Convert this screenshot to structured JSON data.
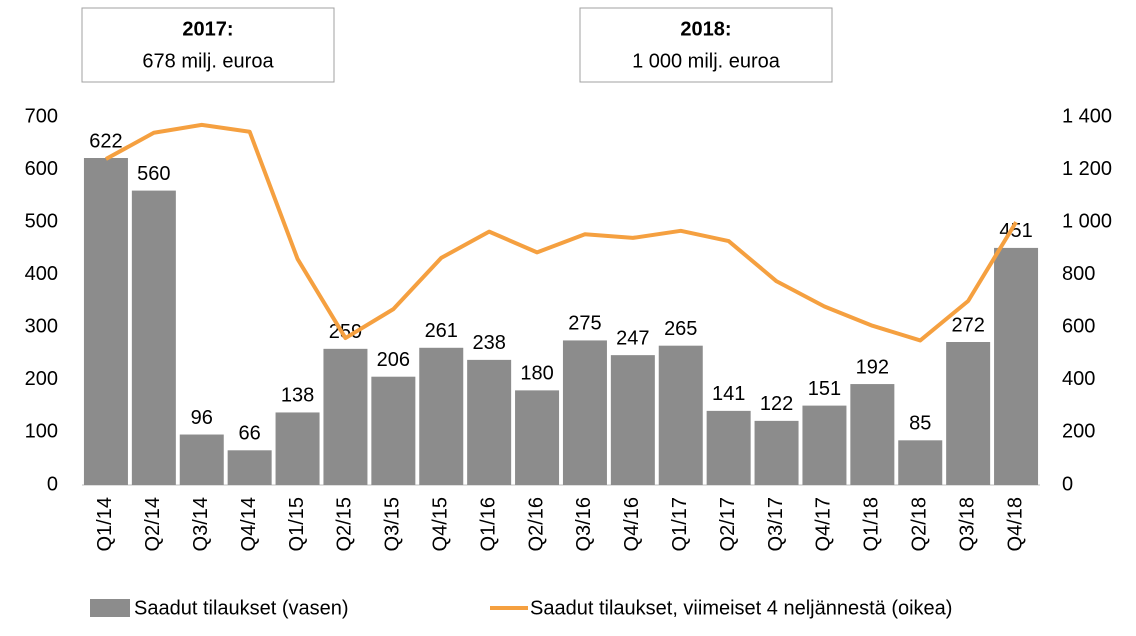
{
  "chart_data": {
    "type": "bar",
    "annotations": [
      {
        "title": "2017:",
        "text": "678 milj. euroa"
      },
      {
        "title": "2018:",
        "text": "1 000 milj. euroa"
      }
    ],
    "categories": [
      "Q1/14",
      "Q2/14",
      "Q3/14",
      "Q4/14",
      "Q1/15",
      "Q2/15",
      "Q3/15",
      "Q4/15",
      "Q1/16",
      "Q2/16",
      "Q3/16",
      "Q4/16",
      "Q1/17",
      "Q2/17",
      "Q3/17",
      "Q4/17",
      "Q1/18",
      "Q2/18",
      "Q3/18",
      "Q4/18"
    ],
    "series": [
      {
        "name": "Saadut tilaukset (vasen)",
        "type": "bar",
        "color": "#8c8c8c",
        "values": [
          622,
          560,
          96,
          66,
          138,
          259,
          206,
          261,
          238,
          180,
          275,
          247,
          265,
          141,
          122,
          151,
          192,
          85,
          272,
          451
        ]
      },
      {
        "name": "Saadut tilaukset, viimeiset 4 neljännestä (oikea)",
        "type": "line",
        "axis": "y2",
        "color": "#f5a040",
        "values": [
          1240,
          1340,
          1370,
          1344,
          860,
          559,
          669,
          864,
          964,
          885,
          954,
          940,
          967,
          928,
          775,
          679,
          606,
          550,
          700,
          1000
        ]
      }
    ],
    "ylim": [
      0,
      700
    ],
    "yticks": [
      0,
      100,
      200,
      300,
      400,
      500,
      600,
      700
    ],
    "y2lim": [
      0,
      1400
    ],
    "y2ticks": [
      0,
      200,
      400,
      600,
      800,
      {
        "value": 1000,
        "label": "1 000"
      },
      {
        "value": 1200,
        "label": "1 200"
      },
      {
        "value": 1400,
        "label": "1 400"
      }
    ]
  }
}
